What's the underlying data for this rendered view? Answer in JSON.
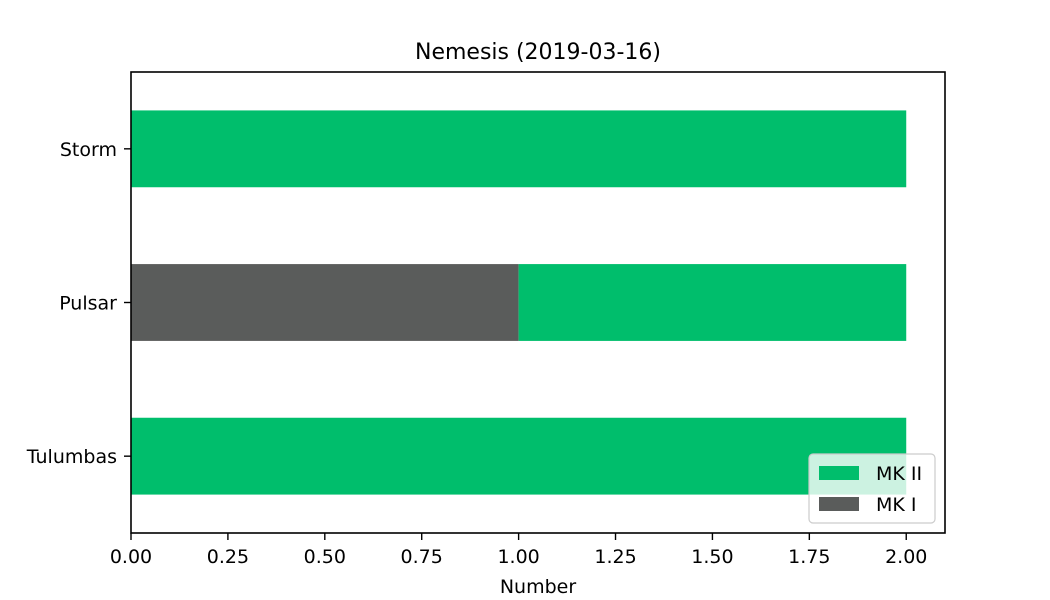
{
  "chart_data": {
    "type": "bar",
    "orientation": "horizontal",
    "stacked": true,
    "title": "Nemesis (2019-03-16)",
    "xlabel": "Number",
    "ylabel": "",
    "categories": [
      "Storm",
      "Pulsar",
      "Tulumbas"
    ],
    "series": [
      {
        "name": "MK I",
        "values": [
          0,
          1,
          0
        ],
        "color": "#5a5c5b"
      },
      {
        "name": "MK II",
        "values": [
          2,
          1,
          2
        ],
        "color": "#00be6c"
      }
    ],
    "xlim": [
      0,
      2.1
    ],
    "xticks": [
      "0.00",
      "0.25",
      "0.50",
      "0.75",
      "1.00",
      "1.25",
      "1.50",
      "1.75",
      "2.00"
    ],
    "grid": false,
    "legend": {
      "placement": "lower-right",
      "entries": [
        "MK II",
        "MK I"
      ]
    }
  }
}
